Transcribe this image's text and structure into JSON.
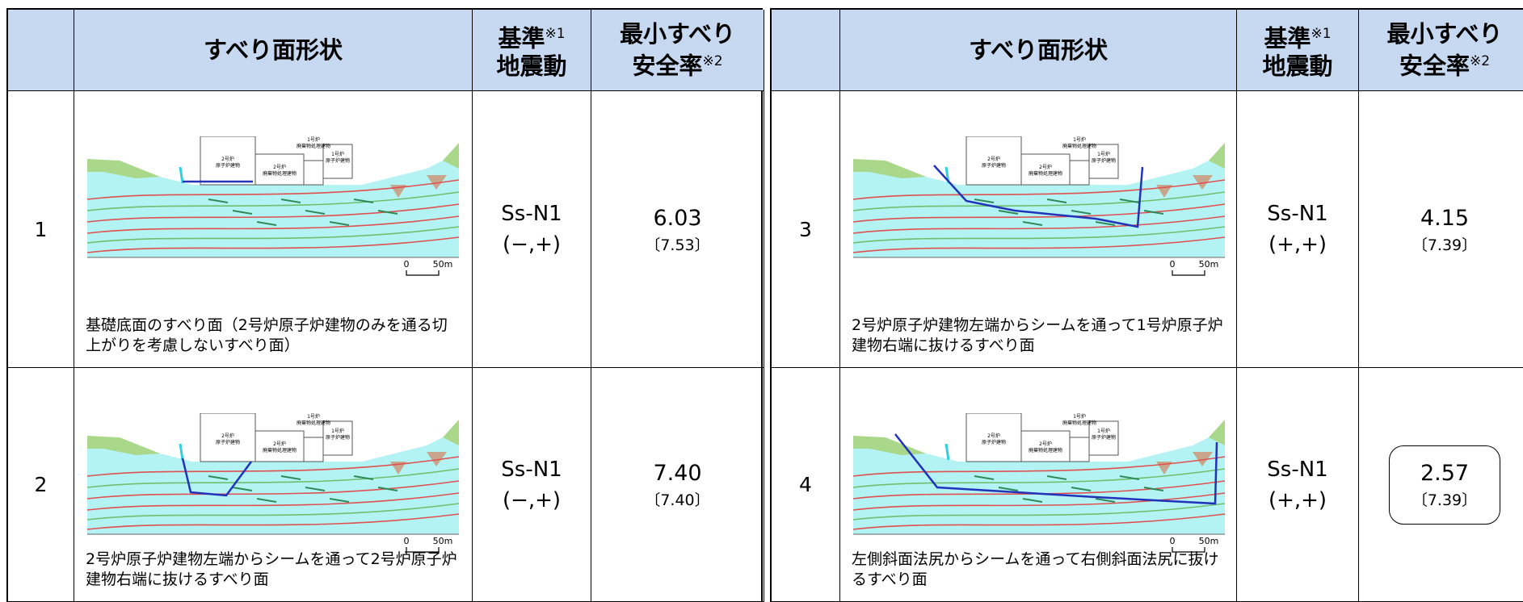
{
  "header": {
    "shape": "すべり面形状",
    "ground_motion": {
      "text1": "基準",
      "note": "※1",
      "text2": "地震動"
    },
    "safety": {
      "text1": "最小すべり",
      "text2": "安全率",
      "note": "※2"
    }
  },
  "buildings": [
    {
      "line1": "2号炉",
      "line2": "原子炉建物"
    },
    {
      "line1": "2号炉",
      "line2": "廃棄物処理建物"
    },
    {
      "line1": "1号炉",
      "line2": "廃棄物処理建物"
    },
    {
      "line1": "1号炉",
      "line2": "原子炉建物"
    }
  ],
  "scale": {
    "zero": "0",
    "length": "50m"
  },
  "rows": [
    {
      "no": "1",
      "caption": "基礎底面のすべり面（2号炉原子炉建物のみを通る切上がりを考慮しないすべり面）",
      "motion": "Ss-N1",
      "sign": "(−,+)",
      "factor": "6.03",
      "reference": "〔7.53〕"
    },
    {
      "no": "2",
      "caption": "2号炉原子炉建物左端からシームを通って2号炉原子炉建物右端に抜けるすべり面",
      "motion": "Ss-N1",
      "sign": "(−,+)",
      "factor": "7.40",
      "reference": "〔7.40〕"
    },
    {
      "no": "3",
      "caption": "2号炉原子炉建物左端からシームを通って1号炉原子炉建物右端に抜けるすべり面",
      "motion": "Ss-N1",
      "sign": "(+,+)",
      "factor": "4.15",
      "reference": "〔7.39〕"
    },
    {
      "no": "4",
      "caption": "左側斜面法尻からシームを通って右側斜面法尻に抜けるすべり面",
      "motion": "Ss-N1",
      "sign": "(+,+)",
      "factor": "2.57",
      "reference": "〔7.39〕"
    }
  ]
}
